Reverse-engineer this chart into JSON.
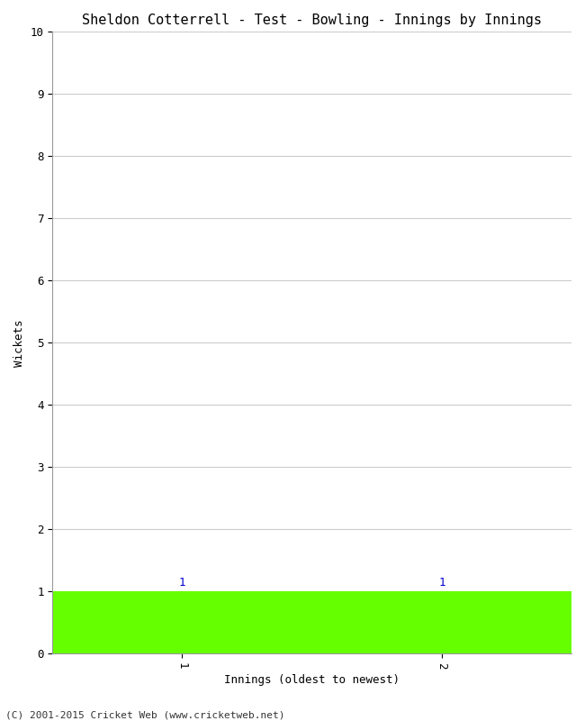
{
  "title": "Sheldon Cotterrell - Test - Bowling - Innings by Innings",
  "xlabel": "Innings (oldest to newest)",
  "ylabel": "Wickets",
  "innings": [
    1,
    2
  ],
  "wickets": [
    1,
    1
  ],
  "bar_color": "#66ff00",
  "bar_edge_color": "#66ff00",
  "ylim": [
    0,
    10
  ],
  "yticks": [
    0,
    1,
    2,
    3,
    4,
    5,
    6,
    7,
    8,
    9,
    10
  ],
  "xticks": [
    1,
    2
  ],
  "xlim_left": 0.5,
  "xlim_right": 2.5,
  "annotation_color": "#0000cc",
  "background_color": "#ffffff",
  "grid_color": "#cccccc",
  "footer": "(C) 2001-2015 Cricket Web (www.cricketweb.net)",
  "title_fontsize": 11,
  "axis_fontsize": 9,
  "tick_fontsize": 9,
  "annotation_fontsize": 9,
  "footer_fontsize": 8
}
